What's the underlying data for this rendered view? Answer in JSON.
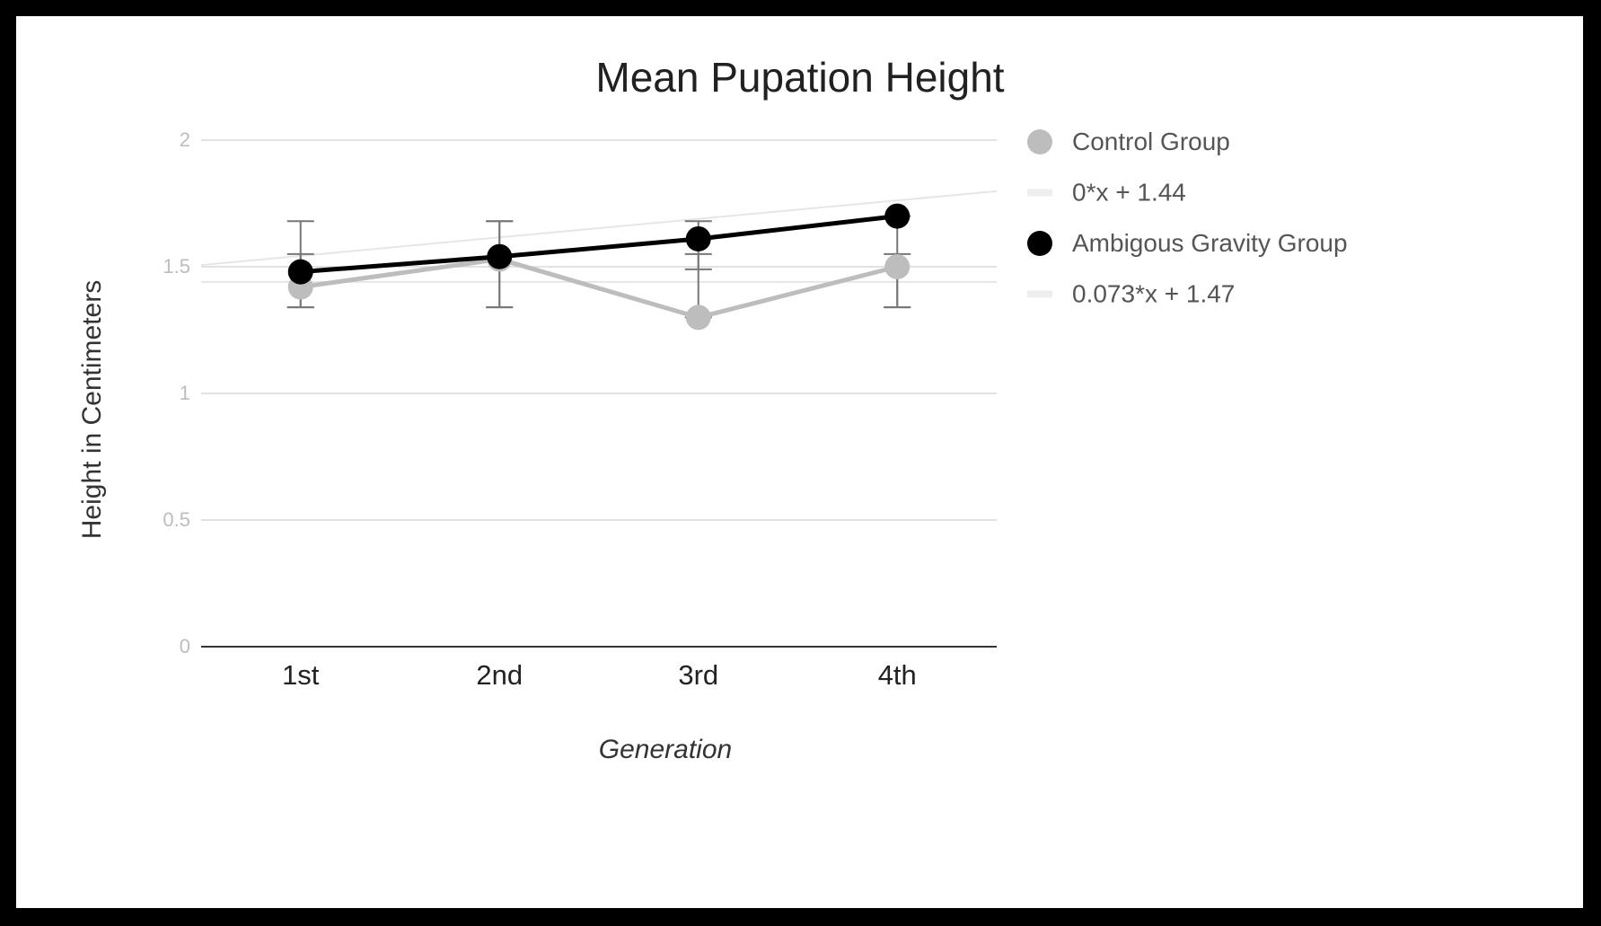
{
  "chart_data": {
    "type": "line",
    "title": "Mean Pupation Height",
    "xlabel": "Generation",
    "ylabel": "Height in Centimeters",
    "categories": [
      "1st",
      "2nd",
      "3rd",
      "4th"
    ],
    "ylim": [
      0,
      2
    ],
    "yticks": [
      0,
      0.5,
      1,
      1.5,
      2
    ],
    "ytick_labels": [
      "0",
      "0.5",
      "1",
      "1.5",
      "2"
    ],
    "grid": true,
    "legend_position": "right",
    "series": [
      {
        "name": "Control Group",
        "values": [
          1.42,
          1.53,
          1.3,
          1.5
        ],
        "color": "#bdbdbd",
        "error_low": [
          1.34,
          1.34,
          1.3,
          1.34
        ],
        "error_high": [
          1.55,
          1.68,
          1.55,
          1.55
        ]
      },
      {
        "name": "Ambigous Gravity Group",
        "values": [
          1.48,
          1.54,
          1.61,
          1.7
        ],
        "color": "#000000",
        "error_low": [
          1.34,
          1.34,
          1.49,
          1.34
        ],
        "error_high": [
          1.68,
          1.68,
          1.68,
          1.7
        ]
      }
    ],
    "trendlines": [
      {
        "label": "0*x + 1.44",
        "slope": 0,
        "intercept": 1.44,
        "color": "#eeeeee"
      },
      {
        "label": "0.073*x + 1.47",
        "slope": 0.073,
        "intercept": 1.47,
        "color": "#eeeeee"
      }
    ]
  }
}
